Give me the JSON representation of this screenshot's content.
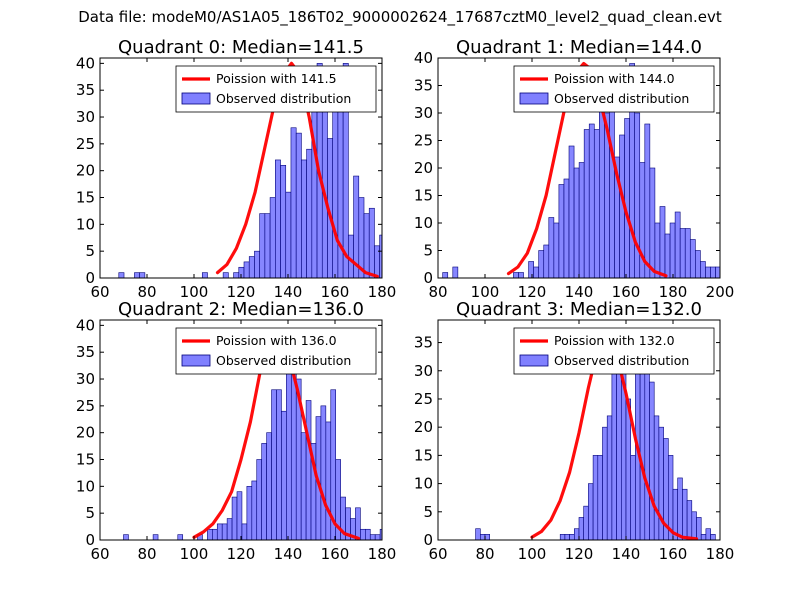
{
  "figure": {
    "suptitle": "Data file: modeM0/AS1A05_186T02_9000002624_17687cztM0_level2_quad_clean.evt"
  },
  "colors": {
    "bar_fill": "#8080ff",
    "bar_edge": "#00007a",
    "curve": "#ff0000",
    "axes": "#000000",
    "background": "#ffffff"
  },
  "chart_data": [
    {
      "type": "bar",
      "title": "Quadrant 0: Median=141.5",
      "median": 141.5,
      "xlim": [
        60,
        180
      ],
      "ylim": [
        0,
        41
      ],
      "xticks": [
        60,
        80,
        100,
        120,
        140,
        160,
        180
      ],
      "yticks": [
        0,
        5,
        10,
        15,
        20,
        25,
        30,
        35,
        40
      ],
      "legend": {
        "position": "upper right",
        "curve_label": "Poission with 141.5",
        "bar_label": "Observed distribution"
      },
      "hist_start": 68,
      "hist_binwidth": 2.22,
      "hist_counts": [
        1,
        0,
        0,
        1,
        1,
        0,
        0,
        0,
        0,
        0,
        0,
        0,
        0,
        0,
        0,
        0,
        1,
        0,
        0,
        0,
        1,
        0,
        1,
        2,
        3,
        4,
        5,
        12,
        12,
        15,
        22,
        21,
        16,
        28,
        27,
        22,
        24,
        32,
        40,
        39,
        26,
        37,
        32,
        40,
        8,
        19,
        15,
        12,
        13,
        6,
        8,
        9,
        7,
        5,
        4,
        2,
        1
      ],
      "curve_x": [
        110,
        114,
        118,
        122,
        126,
        130,
        134,
        138,
        141.5,
        145,
        149,
        153,
        157,
        161,
        165,
        169,
        173,
        178
      ],
      "curve_y": [
        1,
        2.5,
        5.5,
        10,
        16,
        24,
        32,
        38,
        40,
        38,
        30,
        20,
        13,
        7,
        4,
        2.5,
        1,
        0.3
      ]
    },
    {
      "type": "bar",
      "title": "Quadrant 1: Median=144.0",
      "median": 144.0,
      "xlim": [
        80,
        200
      ],
      "ylim": [
        0,
        40
      ],
      "xticks": [
        80,
        100,
        120,
        140,
        160,
        180,
        200
      ],
      "yticks": [
        0,
        5,
        10,
        15,
        20,
        25,
        30,
        35,
        40
      ],
      "legend": {
        "position": "upper right",
        "curve_label": "Poission with 144.0",
        "bar_label": "Observed distribution"
      },
      "hist_start": 82,
      "hist_binwidth": 2.15,
      "hist_counts": [
        1,
        0,
        2,
        0,
        0,
        0,
        0,
        0,
        0,
        0,
        0,
        0,
        0,
        0,
        1,
        1,
        0,
        3,
        2,
        5,
        6,
        11,
        10,
        17,
        18,
        24,
        20,
        21,
        27,
        28,
        27,
        36,
        30,
        31,
        22,
        26,
        29,
        39,
        30,
        21,
        28,
        20,
        10,
        13,
        8,
        10,
        12,
        9,
        9,
        7,
        5,
        3,
        2,
        2,
        2,
        1,
        1,
        0,
        0,
        0,
        0,
        0,
        0,
        0,
        0,
        1
      ],
      "curve_x": [
        110,
        114,
        118,
        122,
        126,
        130,
        134,
        138,
        142,
        145,
        148,
        152,
        156,
        160,
        164,
        168,
        172,
        177
      ],
      "curve_y": [
        0.8,
        2,
        4.5,
        9,
        15,
        23,
        31,
        37,
        39,
        38,
        34,
        27,
        19,
        12,
        6.5,
        3,
        1.2,
        0.4
      ]
    },
    {
      "type": "bar",
      "title": "Quadrant 2: Median=136.0",
      "median": 136.0,
      "xlim": [
        60,
        180
      ],
      "ylim": [
        0,
        41
      ],
      "xticks": [
        60,
        80,
        100,
        120,
        140,
        160,
        180
      ],
      "yticks": [
        0,
        5,
        10,
        15,
        20,
        25,
        30,
        35,
        40
      ],
      "legend": {
        "position": "upper right",
        "curve_label": "Poission with 136.0",
        "bar_label": "Observed distribution"
      },
      "hist_start": 70,
      "hist_binwidth": 2.1,
      "hist_counts": [
        1,
        0,
        0,
        0,
        0,
        0,
        1,
        0,
        0,
        0,
        0,
        1,
        0,
        0,
        0,
        1,
        0,
        2,
        2,
        3,
        3,
        4,
        8,
        9,
        3,
        10,
        11,
        15,
        18,
        20,
        28,
        28,
        24,
        35,
        39,
        30,
        20,
        26,
        18,
        23,
        25,
        22,
        28,
        15,
        8,
        6,
        4,
        6,
        2,
        2,
        1,
        1,
        2
      ],
      "curve_x": [
        100,
        104,
        108,
        112,
        116,
        120,
        124,
        128,
        132,
        136,
        140,
        144,
        148,
        152,
        156,
        160,
        164,
        170
      ],
      "curve_y": [
        0.5,
        1.5,
        3,
        5.5,
        9,
        15,
        22,
        31,
        37,
        39,
        35,
        28,
        20,
        12,
        6.5,
        3,
        1.2,
        0.3
      ]
    },
    {
      "type": "bar",
      "title": "Quadrant 3: Median=132.0",
      "median": 132.0,
      "xlim": [
        60,
        180
      ],
      "ylim": [
        0,
        39
      ],
      "xticks": [
        60,
        80,
        100,
        120,
        140,
        160,
        180
      ],
      "yticks": [
        0,
        5,
        10,
        15,
        20,
        25,
        30,
        35
      ],
      "legend": {
        "position": "upper right",
        "curve_label": "Poission with 132.0",
        "bar_label": "Observed distribution"
      },
      "hist_start": 76,
      "hist_binwidth": 2.0,
      "hist_counts": [
        2,
        1,
        1,
        0,
        0,
        0,
        0,
        0,
        0,
        0,
        0,
        0,
        0,
        0,
        0,
        0,
        0,
        0,
        1,
        1,
        1,
        2,
        4,
        6,
        10,
        15,
        15,
        20,
        22,
        31,
        30,
        32,
        25,
        15,
        33,
        35,
        30,
        28,
        22,
        20,
        18,
        15,
        9,
        11,
        9,
        7,
        5,
        4,
        1,
        2,
        1,
        0,
        1,
        1,
        1
      ],
      "curve_x": [
        100,
        104,
        108,
        112,
        116,
        120,
        124,
        128,
        132,
        136,
        140,
        144,
        148,
        152,
        156,
        160,
        164,
        170
      ],
      "curve_y": [
        0.5,
        1.5,
        3.5,
        7,
        12,
        19,
        27,
        34,
        36,
        33,
        26,
        18,
        11,
        6,
        3,
        1.3,
        0.5,
        0.2
      ]
    }
  ]
}
